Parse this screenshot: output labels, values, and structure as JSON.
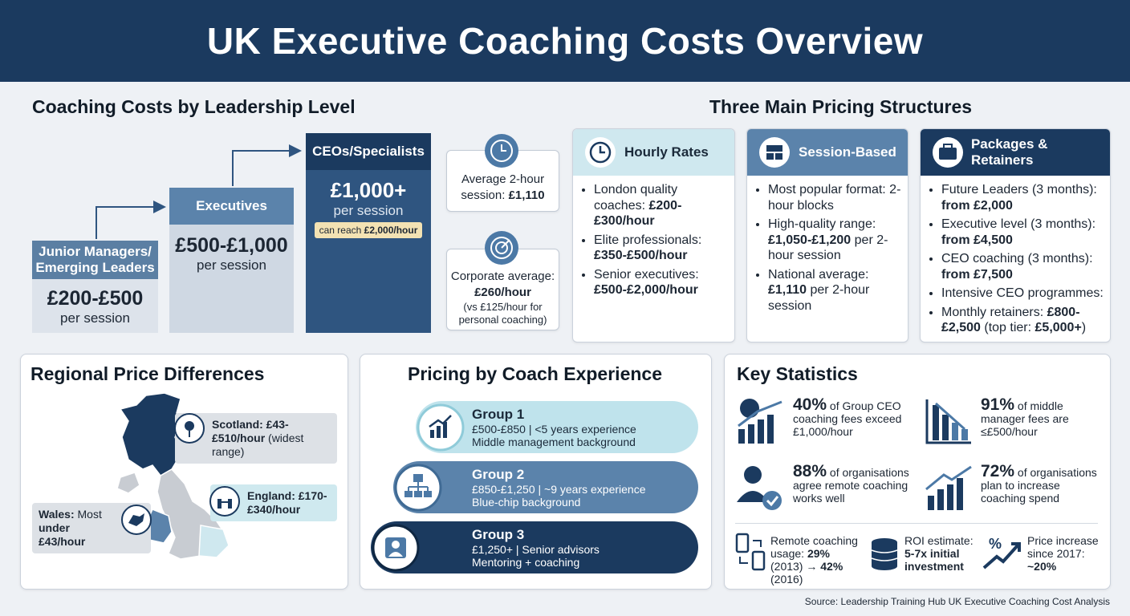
{
  "header": {
    "title": "UK Executive Coaching Costs Overview"
  },
  "levels": {
    "title": "Coaching Costs by Leadership Level",
    "steps": [
      {
        "label": "Junior Managers/ Emerging Leaders",
        "price": "£200-£500",
        "unit": "per session"
      },
      {
        "label": "Executives",
        "price": "£500-£1,000",
        "unit": "per session"
      },
      {
        "label": "CEOs/Specialists",
        "price": "£1,000+",
        "unit": "per session",
        "note": [
          "can reach ",
          {
            "bold": "£2,000/hour"
          }
        ]
      }
    ],
    "callouts": [
      {
        "text": [
          "Average 2-hour session: ",
          {
            "bold": "£1,110"
          }
        ]
      },
      {
        "text": [
          "Corporate average: ",
          {
            "bold": "£260/hour"
          }
        ],
        "sub": "(vs £125/hour for personal coaching)"
      }
    ]
  },
  "structures": {
    "title": "Three Main Pricing Structures",
    "cards": [
      {
        "title": "Hourly Rates",
        "items": [
          [
            "London quality coaches: ",
            {
              "bold": "£200-£300/hour"
            }
          ],
          [
            "Elite professionals: ",
            {
              "bold": "£350-£500/hour"
            }
          ],
          [
            "Senior executives: ",
            {
              "bold": "£500-£2,000/hour"
            }
          ]
        ]
      },
      {
        "title": "Session-Based",
        "items": [
          [
            "Most popular format: 2-hour blocks"
          ],
          [
            "High-quality range: ",
            {
              "bold": "£1,050-£1,200"
            },
            " per 2-hour session"
          ],
          [
            "National average: ",
            {
              "bold": "£1,110"
            },
            " per 2-hour session"
          ]
        ]
      },
      {
        "title": "Packages & Retainers",
        "items": [
          [
            "Future Leaders (3 months): ",
            {
              "bold": "from £2,000"
            }
          ],
          [
            "Executive level (3 months): ",
            {
              "bold": "from £4,500"
            }
          ],
          [
            "CEO coaching (3 months): ",
            {
              "bold": "from £7,500"
            }
          ],
          [
            "Intensive CEO programmes:"
          ],
          [
            "Monthly retainers: ",
            {
              "bold": "£800-£2,500"
            },
            " (top tier: ",
            {
              "bold": "£5,000+"
            },
            ")"
          ]
        ]
      }
    ]
  },
  "regional": {
    "title": "Regional Price Differences",
    "regions": [
      [
        {
          "bold": "Scotland: £43-£510/hour"
        },
        " (widest range)"
      ],
      [
        {
          "bold": "England: £170-£340/hour"
        }
      ],
      [
        {
          "bold": "Wales:"
        },
        " Most ",
        {
          "bold": "under £43/hour"
        }
      ]
    ]
  },
  "experience": {
    "title": "Pricing by Coach Experience",
    "groups": [
      {
        "name": "Group 1",
        "line1": "£500-£850 | <5 years experience",
        "line2": "Middle management background"
      },
      {
        "name": "Group 2",
        "line1": "£850-£1,250 | ~9 years experience",
        "line2": "Blue-chip background"
      },
      {
        "name": "Group 3",
        "line1": "£1,250+ | Senior advisors",
        "line2": "Mentoring + coaching"
      }
    ]
  },
  "statistics": {
    "title": "Key Statistics",
    "stats": [
      {
        "value": "40%",
        "text": " of Group CEO coaching fees exceed £1,000/hour"
      },
      {
        "value": "91%",
        "text": " of middle manager fees are ≤£500/hour"
      },
      {
        "value": "88%",
        "text": " of organisations agree remote coaching works well"
      },
      {
        "value": "72%",
        "text": " of organisations plan to increase coaching spend"
      }
    ],
    "small": [
      [
        "Remote coaching usage: ",
        {
          "bold": "29%"
        },
        " (2013) → ",
        {
          "bold": "42%"
        },
        " (2016)"
      ],
      [
        "ROI estimate: ",
        {
          "bold": "5-7x initial investment"
        }
      ],
      [
        "Price increase since 2017: ",
        {
          "bold": "~20%"
        }
      ]
    ]
  },
  "footer": {
    "source": "Source: Leadership Training Hub UK Executive Coaching Cost Analysis"
  }
}
